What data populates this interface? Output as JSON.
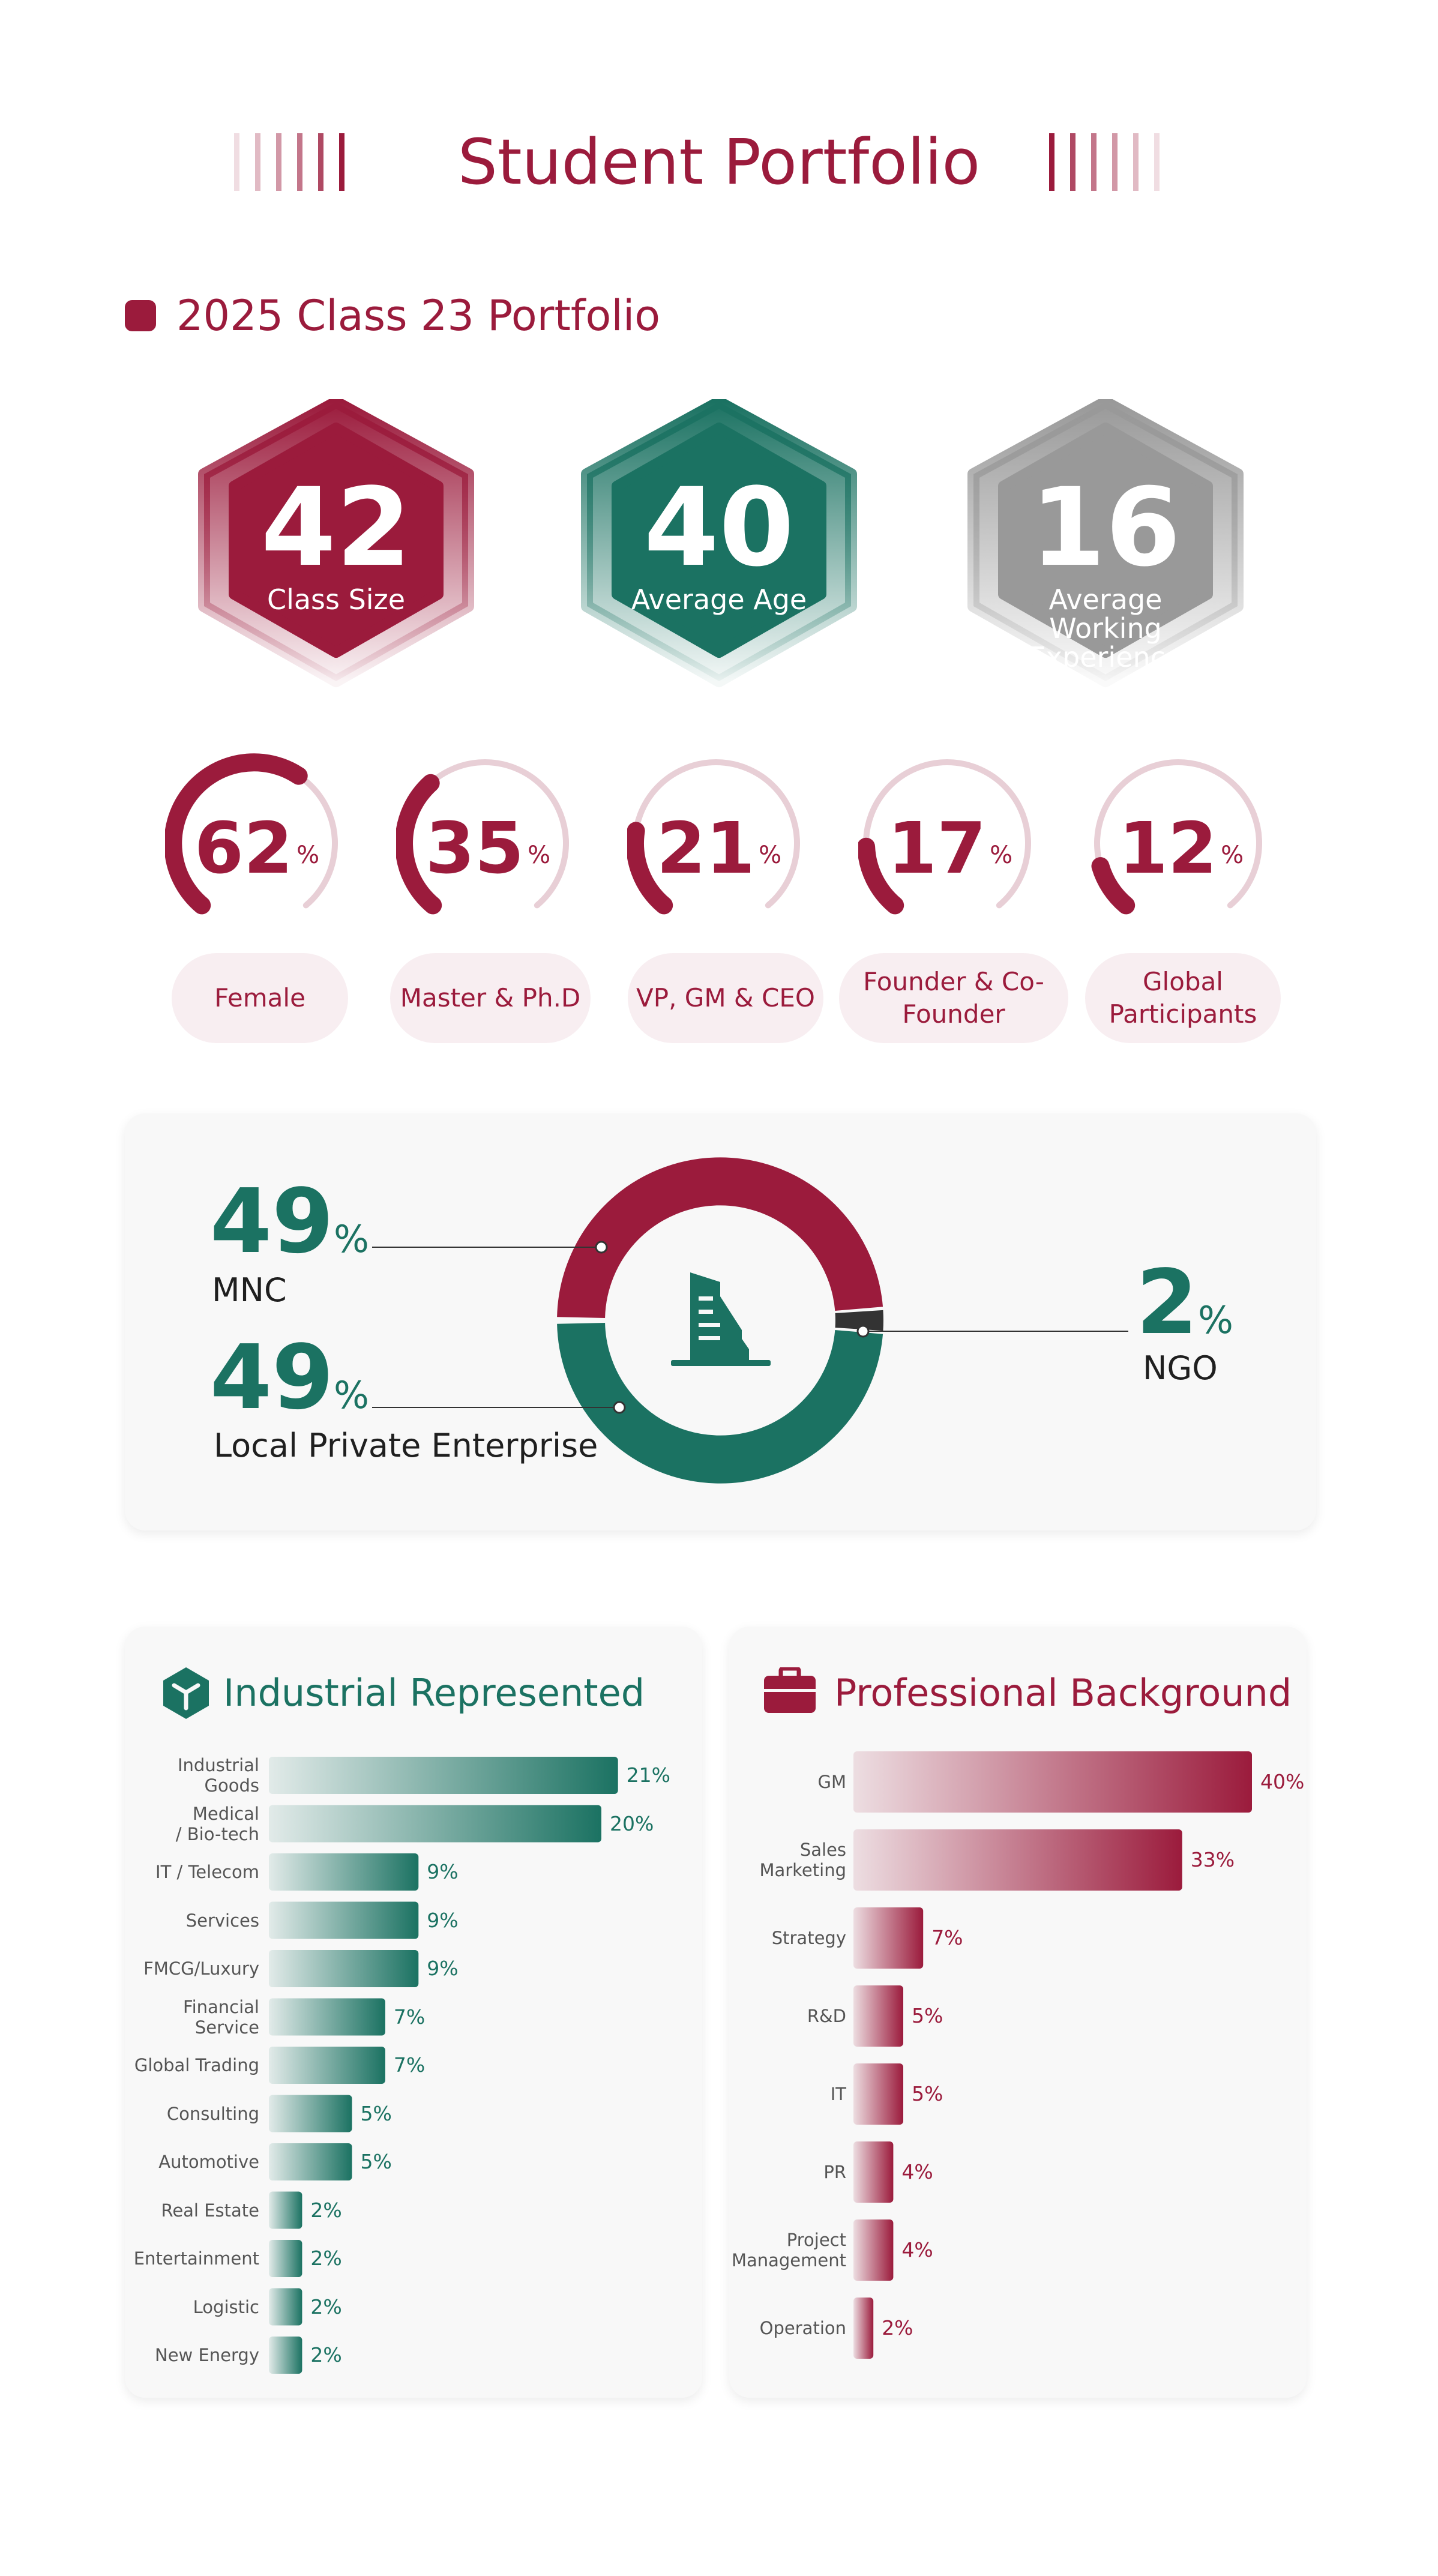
{
  "page": {
    "title": "Student Portfolio",
    "section_title": "2025 Class 23 Portfolio"
  },
  "colors": {
    "crimson": "#9b1b3c",
    "teal": "#1b7262",
    "gray": "#999999",
    "pink_light": "#f8eef1"
  },
  "stats": [
    {
      "value": "42",
      "label": "Class Size"
    },
    {
      "value": "40",
      "label": "Average Age"
    },
    {
      "value": "16",
      "label": "Average Working Experience"
    }
  ],
  "gauges": [
    {
      "value": 62,
      "unit": "%",
      "label": "Female"
    },
    {
      "value": 35,
      "unit": "%",
      "label": "Master & Ph.D"
    },
    {
      "value": 21,
      "unit": "%",
      "label": "VP, GM & CEO"
    },
    {
      "value": 17,
      "unit": "%",
      "label": "Founder & Co-Founder"
    },
    {
      "value": 12,
      "unit": "%",
      "label": "Global Participants"
    }
  ],
  "ownership": {
    "icon": "building-icon",
    "unit": "%",
    "items": [
      {
        "value": 49,
        "label": "MNC"
      },
      {
        "value": 49,
        "label": "Local Private Enterprise"
      },
      {
        "value": 2,
        "label": "NGO"
      }
    ]
  },
  "chart_data": [
    {
      "type": "pie",
      "categories": [
        "MNC",
        "Local Private Enterprise",
        "NGO"
      ],
      "values": [
        49,
        49,
        2
      ]
    },
    {
      "type": "bar",
      "title": "Industrial Represented",
      "categories": [
        "Industrial Goods",
        "Medical / Bio-tech",
        "IT / Telecom",
        "Services",
        "FMCG/Luxury",
        "Financial Service",
        "Global Trading",
        "Consulting",
        "Automotive",
        "Real Estate",
        "Entertainment",
        "Logistic",
        "New Energy"
      ],
      "values": [
        21,
        20,
        9,
        9,
        9,
        7,
        7,
        5,
        5,
        2,
        2,
        2,
        2
      ],
      "value_labels": [
        "21%",
        "20%",
        "9%",
        "9%",
        "9%",
        "7%",
        "7%",
        "5%",
        "5%",
        "2%",
        "2%",
        "2%",
        "2%"
      ]
    },
    {
      "type": "bar",
      "title": "Professional Background",
      "categories": [
        "GM",
        "Sales Marketing",
        "Strategy",
        "R&D",
        "IT",
        "PR",
        "Project Management",
        "Operation"
      ],
      "values": [
        40,
        33,
        7,
        5,
        5,
        4,
        4,
        2
      ],
      "value_labels": [
        "40%",
        "33%",
        "7%",
        "5%",
        "5%",
        "4%",
        "4%",
        "2%"
      ]
    }
  ],
  "panels": {
    "industry": {
      "title": "Industrial Represented",
      "icon": "cube-icon"
    },
    "profession": {
      "title": "Professional Background",
      "icon": "briefcase-icon"
    }
  }
}
